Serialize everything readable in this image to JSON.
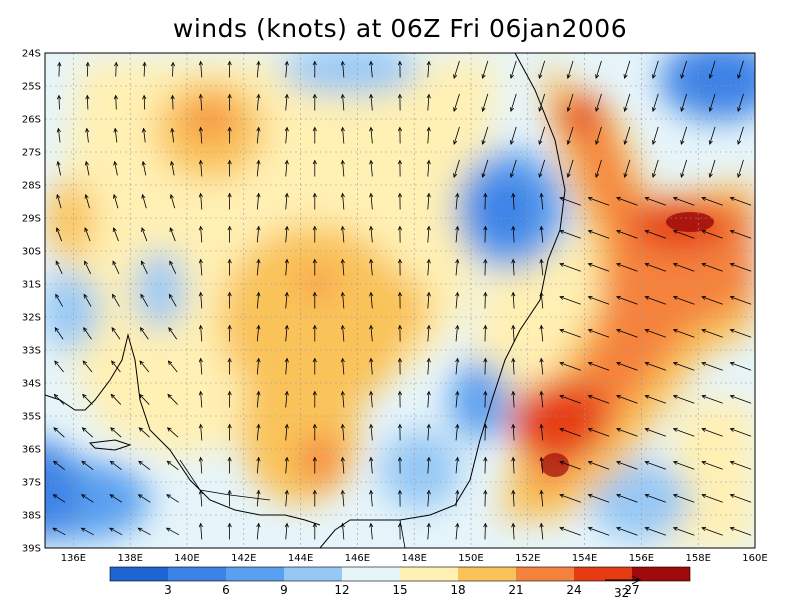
{
  "title": "winds (knots) at 06Z Fri 06jan2006",
  "map": {
    "lat_labels": [
      "24S",
      "25S",
      "26S",
      "27S",
      "28S",
      "29S",
      "30S",
      "31S",
      "32S",
      "33S",
      "34S",
      "35S",
      "36S",
      "37S",
      "38S",
      "39S"
    ],
    "lon_labels": [
      "136E",
      "138E",
      "140E",
      "142E",
      "144E",
      "146E",
      "148E",
      "150E",
      "152E",
      "154E",
      "156E",
      "158E",
      "160E"
    ],
    "lon_range": [
      135,
      160
    ],
    "lat_range": [
      -39,
      -24
    ]
  },
  "colorbar": {
    "colors": [
      "#1e64d2",
      "#3c82e6",
      "#5aa0f0",
      "#96c8f5",
      "#e6f5fa",
      "#fff0b4",
      "#fac35a",
      "#f5823c",
      "#e63c14",
      "#a00a0a"
    ],
    "labels": [
      "3",
      "6",
      "9",
      "12",
      "15",
      "18",
      "21",
      "24",
      "27"
    ]
  },
  "reference_vector": {
    "label": "32"
  },
  "colors": {
    "coast": "#000000",
    "grid": "#999999"
  }
}
